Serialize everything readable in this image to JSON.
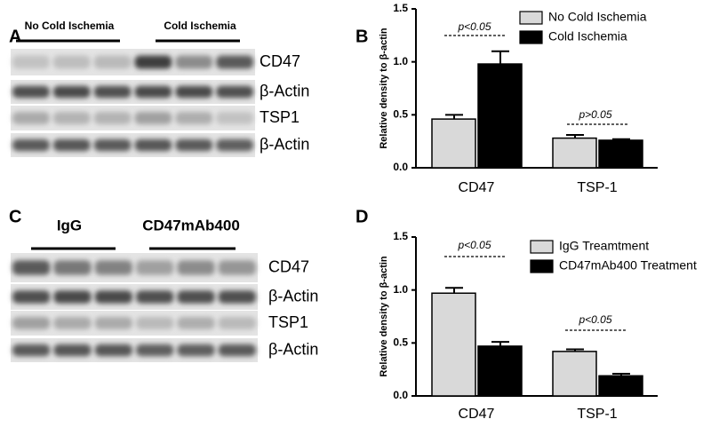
{
  "panels": [
    {
      "label": "A",
      "groups": [
        "No Cold Ischemia",
        "Cold Ischemia"
      ],
      "rows": [
        "CD47",
        "β-Actin",
        "TSP1",
        "β-Actin"
      ]
    },
    {
      "label": "C",
      "groups": [
        "IgG",
        "CD47mAb400"
      ],
      "rows": [
        "CD47",
        "β-Actin",
        "TSP1",
        "β-Actin"
      ]
    }
  ],
  "chart_data": [
    {
      "type": "bar",
      "panel": "B",
      "ylabel": "Relative density to β-actin",
      "categories": [
        "CD47",
        "TSP-1"
      ],
      "series": [
        {
          "name": "No Cold Ischemia",
          "color": "#d9d9d9",
          "values": [
            0.46,
            0.28
          ],
          "errors": [
            0.04,
            0.03
          ]
        },
        {
          "name": "Cold Ischemia",
          "color": "#000000",
          "values": [
            0.98,
            0.26
          ],
          "errors": [
            0.12,
            0.01
          ]
        }
      ],
      "annotations": [
        "p<0.05",
        "p>0.05"
      ],
      "ylim": [
        0,
        1.5
      ],
      "yticks": [
        {
          "value": 0,
          "label": "0.0"
        },
        0.5,
        {
          "value": 1,
          "label": "1.0"
        },
        1.5
      ],
      "legend": "upper right"
    },
    {
      "type": "bar",
      "panel": "D",
      "ylabel": "Relative density to β-actin",
      "categories": [
        "CD47",
        "TSP-1"
      ],
      "series": [
        {
          "name": "IgG Treamtment",
          "color": "#d9d9d9",
          "values": [
            0.97,
            0.42
          ],
          "errors": [
            0.05,
            0.02
          ]
        },
        {
          "name": "CD47mAb400 Treatment",
          "color": "#000000",
          "values": [
            0.47,
            0.19
          ],
          "errors": [
            0.04,
            0.02
          ]
        }
      ],
      "annotations": [
        "p<0.05",
        "p<0.05"
      ],
      "ylim": [
        0,
        1.5
      ],
      "yticks": [
        {
          "value": 0,
          "label": "0.0"
        },
        0.5,
        {
          "value": 1,
          "label": "1.0"
        },
        1.5
      ],
      "legend": "upper right"
    }
  ]
}
